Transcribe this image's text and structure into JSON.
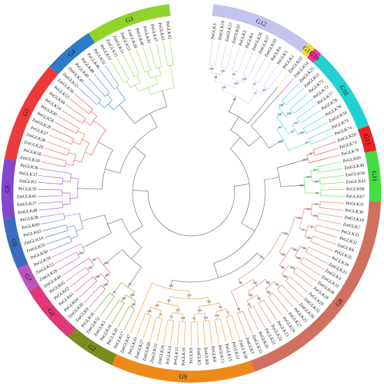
{
  "tree": {
    "groups": [
      {
        "name": "G12",
        "color": "#c4c4ee",
        "leaves": [
          "PeGLK3",
          "ZmGLK19",
          "ZmGLK57",
          "ZmGLK62",
          "PeGLK2",
          "PeGLK4",
          "ZmGLK36",
          "ZmGLK17",
          "ZmGLK10",
          "PeGLK6",
          "PeGLK5",
          "PeGLK1"
        ]
      },
      {
        "name": "G11",
        "color": "#f5dc3c",
        "leaves": [
          "ZmGLK22"
        ]
      },
      {
        "name": "G10",
        "color": "#ee3399",
        "leaves": [
          "ZmGLK54"
        ]
      },
      {
        "name": "G10",
        "color": "#22d2d2",
        "leaves": [
          "ZmGLK25",
          "ZmGLK11",
          "PeGLK72",
          "PeGLK73",
          "PeGLK77",
          "PeGLK76",
          "PeGLK78",
          "ZmGLK34",
          "PeGLK75",
          "PeGLK74"
        ]
      },
      {
        "name": "G13",
        "color": "#ee2222",
        "leaves": [
          "ZmGLK20",
          "PeGLK71",
          "PeGLK70"
        ]
      },
      {
        "name": "G11",
        "color": "#44dd44",
        "leaves": [
          "PeGLK69",
          "ZmGLK49",
          "ZmGLK50",
          "ZmGLK41",
          "PeGLK68",
          "PeGLK67"
        ]
      },
      {
        "name": "G8",
        "color": "#d07060",
        "leaves": [
          "PeGLK31",
          "PeGLK30",
          "ZmGLK18",
          "ZmGLK7",
          "PeGLK33",
          "PeGLK32",
          "ZmGLK6",
          "PeGLK35",
          "PeGLK34",
          "ZmGLK23",
          "ZmGLK4",
          "ZmGLK31",
          "ZmGLK46",
          "PeGLK28",
          "PeGLK29",
          "ZmGLK32",
          "ZmGLK39",
          "PeGLK25",
          "PeGLK27",
          "PeGLK24",
          "PeGLK23",
          "PeGLK22",
          "PeGLK21",
          "PeGLK26",
          "ZmGLK33",
          "ZmGLK1"
        ]
      },
      {
        "name": "G9",
        "color": "#ee8a1a",
        "leaves": [
          "ZmGLK58",
          "PeGLK12",
          "PeGLK15",
          "PeGLK13",
          "PeGLK8",
          "ZmGLK8",
          "ZmGLK5",
          "PeGLK9",
          "PeGLK19",
          "PeGLK11",
          "PeGLK14",
          "ZmGLK16",
          "ZmGLK53",
          "ZmGLK60",
          "ZmGLK27",
          "PeGLK10",
          "ZmGLK47"
        ]
      },
      {
        "name": "G2",
        "color": "#7a8c1e",
        "leaves": [
          "PeGLK17",
          "PeGLK20",
          "PeGLK18",
          "ZmGLK3",
          "ZmGLK52",
          "PeGLK16"
        ]
      },
      {
        "name": "G2",
        "color": "#e03878",
        "leaves": [
          "ZmGLK9",
          "ZmGLK35",
          "PeGLK64",
          "PeGLK61",
          "PeGLK62",
          "PeGLK65",
          "ZmGLK44"
        ]
      },
      {
        "name": "G7",
        "color": "#bb55bb",
        "leaves": [
          "ZmGLK26",
          "ZmGLK12",
          "PeGLK59"
        ]
      },
      {
        "name": "G5",
        "color": "#3c6cc0",
        "leaves": [
          "PeGLK50",
          "ZmGLK55",
          "ZmGLK14",
          "PeGLK63",
          "PeGLK60",
          "PeGLK38"
        ]
      },
      {
        "name": "G6",
        "color": "#8844cc",
        "leaves": [
          "ZmGLK48",
          "ZmGLK37",
          "ZmGLK42",
          "PeGLK39",
          "ZmGLK1",
          "PeGLK37",
          "PeGLK36"
        ]
      },
      {
        "name": "G1",
        "color": "#ee3a3a",
        "leaves": [
          "ZmGLK30",
          "PeGLK58",
          "ZmGLK29",
          "ZmGLK28",
          "PeGLK57",
          "ZmGLK39",
          "PeGLK56",
          "PeGLK45",
          "PeGLK54",
          "PeGLK44",
          "PeGLK53",
          "ZmGLK56"
        ]
      },
      {
        "name": "G4",
        "color": "#2e7cc8",
        "leaves": [
          "ZmGLK15",
          "ZmGLK40",
          "PeGLK49",
          "PeGLK48",
          "PeGLK46",
          "PeGLK52"
        ]
      },
      {
        "name": "G3",
        "color": "#8ed42a",
        "leaves": [
          "PeGLK51",
          "ZmGLK21",
          "ZmGLK51",
          "ZmGLK53",
          "ZmGLK28",
          "PeGLK40",
          "PeGLK41",
          "PeGLK47",
          "PeGLK43",
          "PeGLK42"
        ]
      }
    ],
    "bootstrap": [
      "100",
      "100",
      "99",
      "100",
      "71",
      "100",
      "98",
      "100",
      "75",
      "100",
      "95",
      "100",
      "100",
      "44",
      "100",
      "97",
      "100",
      "35",
      "99",
      "100",
      "26",
      "100",
      "99",
      "100",
      "94",
      "100",
      "100",
      "91",
      "100",
      "87",
      "100",
      "95",
      "100",
      "100",
      "100",
      "93",
      "100",
      "98",
      "62",
      "40",
      "100",
      "91",
      "100",
      "99",
      "100",
      "100",
      "100",
      "100",
      "100",
      "100",
      "99",
      "27",
      "72",
      "100",
      "100",
      "99",
      "100",
      "53",
      "79",
      "100",
      "92",
      "100",
      "100",
      "100",
      "100",
      "99",
      "100",
      "100",
      "100",
      "100",
      "73",
      "100",
      "96",
      "100",
      "100",
      "99",
      "100",
      "81",
      "100",
      "100"
    ]
  }
}
